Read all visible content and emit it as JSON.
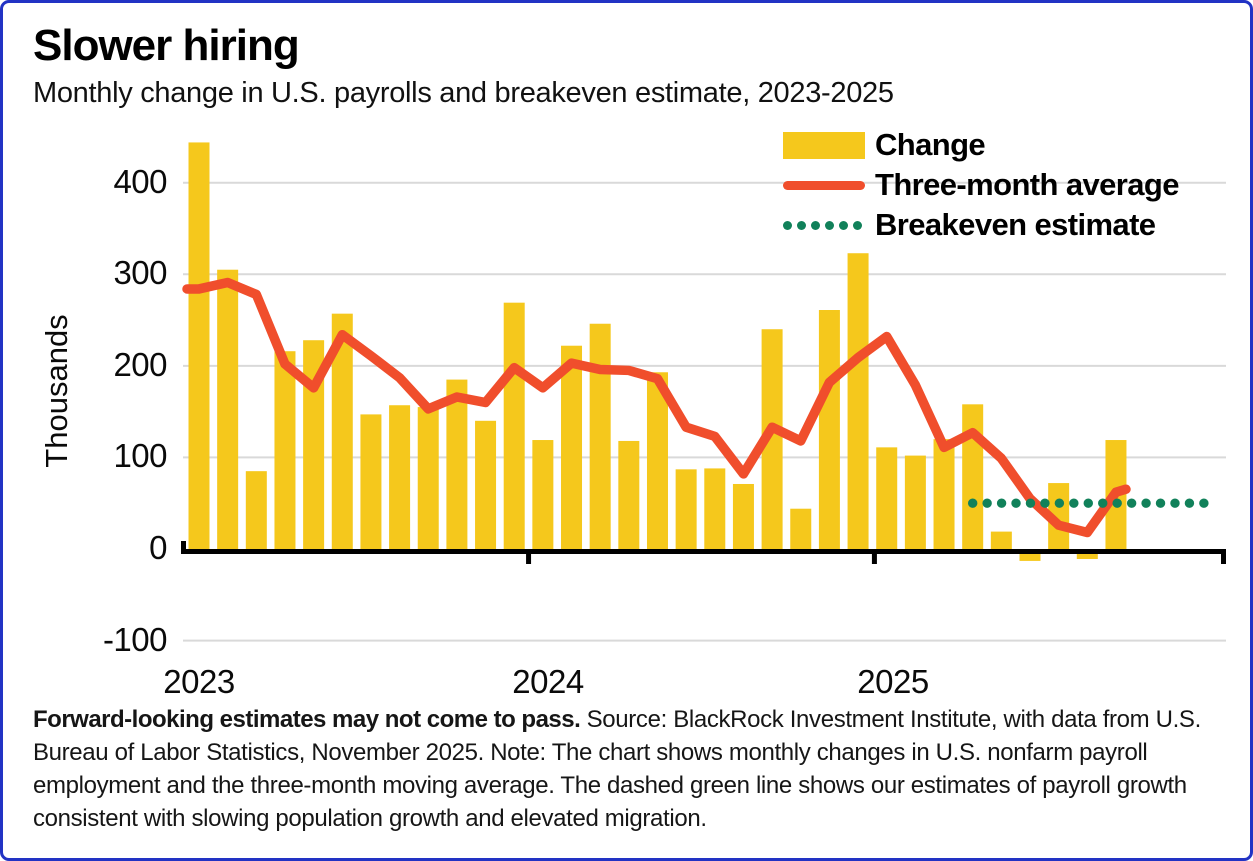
{
  "title": "Slower hiring",
  "subtitle": "Monthly change in U.S. payrolls and breakeven estimate, 2023-2025",
  "legend": [
    {
      "label": "Change",
      "swatch": "yellow-bar",
      "color": "#F5C81C"
    },
    {
      "label": "Three-month average",
      "swatch": "red-line",
      "color": "#F04E2C"
    },
    {
      "label": "Breakeven estimate",
      "swatch": "green-dots",
      "color": "#11815A"
    }
  ],
  "y_axis": {
    "label": "Thousands",
    "ticks": [
      400,
      300,
      200,
      100,
      0,
      -100
    ]
  },
  "x_axis": {
    "labels": [
      "2023",
      "2024",
      "2025"
    ]
  },
  "footer": {
    "bold": "Forward-looking estimates may not come to pass.",
    "text": "Source: BlackRock Investment Institute, with data from U.S. Bureau of Labor Statistics, November 2025. Note: The chart shows monthly changes in U.S. nonfarm payroll employment and the three-month moving average. The dashed green line shows our estimates of payroll growth consistent with slowing population growth and elevated migration."
  },
  "colors": {
    "bar_yellow": "#F5C81C",
    "line_red": "#F04E2C",
    "breakeven_green": "#11815A",
    "border_blue": "#2233C4",
    "gridline_gray": "#D9D9D9",
    "axis_black": "#000000"
  },
  "chart_data": {
    "type": "bar",
    "title": "Slower hiring",
    "subtitle": "Monthly change in U.S. payrolls and breakeven estimate, 2023-2025",
    "ylabel": "Thousands",
    "ylim": [
      -100,
      460
    ],
    "yticks": [
      -100,
      0,
      100,
      200,
      300,
      400
    ],
    "grid": true,
    "legend_position": "top-right",
    "x": [
      "Jan 2023",
      "Feb 2023",
      "Mar 2023",
      "Apr 2023",
      "May 2023",
      "Jun 2023",
      "Jul 2023",
      "Aug 2023",
      "Sep 2023",
      "Oct 2023",
      "Nov 2023",
      "Dec 2023",
      "Jan 2024",
      "Feb 2024",
      "Mar 2024",
      "Apr 2024",
      "May 2024",
      "Jun 2024",
      "Jul 2024",
      "Aug 2024",
      "Sep 2024",
      "Oct 2024",
      "Nov 2024",
      "Dec 2024",
      "Jan 2025",
      "Feb 2025",
      "Mar 2025",
      "Apr 2025",
      "May 2025",
      "Jun 2025",
      "Jul 2025",
      "Aug 2025",
      "Sep 2025"
    ],
    "x_year_labels": [
      "2023",
      "2024",
      "2025"
    ],
    "series": [
      {
        "name": "Change",
        "type": "bar",
        "color": "#F5C81C",
        "values": [
          444,
          305,
          85,
          216,
          228,
          257,
          147,
          157,
          155,
          185,
          140,
          269,
          119,
          222,
          246,
          118,
          193,
          87,
          88,
          71,
          240,
          44,
          261,
          323,
          111,
          102,
          120,
          158,
          19,
          -13,
          72,
          -4,
          119
        ]
      },
      {
        "name": "Three-month average",
        "type": "line",
        "color": "#F04E2C",
        "values": [
          284,
          291,
          278,
          202,
          176,
          234,
          211,
          187,
          153,
          166,
          160,
          198,
          176,
          203,
          196,
          195,
          186,
          133,
          123,
          82,
          133,
          118,
          182,
          209,
          232,
          179,
          111,
          127,
          99,
          55,
          26,
          18,
          62
        ]
      },
      {
        "name": "Breakeven estimate",
        "type": "dotted-line",
        "color": "#11815A",
        "value": 50,
        "from": "Apr 2025",
        "extends_past_last_month": true
      }
    ]
  }
}
